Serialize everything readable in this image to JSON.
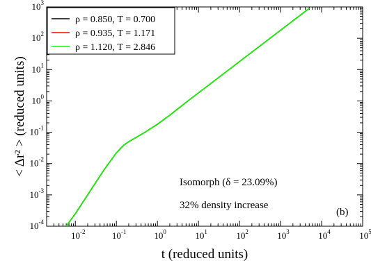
{
  "chart_data": {
    "type": "line",
    "xlabel": "t (reduced units)",
    "ylabel": "< Δr² > (reduced units)",
    "x_scale": "log",
    "y_scale": "log",
    "xlim": [
      0.002,
      100000
    ],
    "ylim": [
      0.0001,
      1000
    ],
    "x_tick_exponents": [
      -2,
      -1,
      0,
      1,
      2,
      3,
      4,
      5
    ],
    "y_tick_exponents": [
      -4,
      -3,
      -2,
      -1,
      0,
      1,
      2,
      3
    ],
    "grid": false,
    "legend_position": "top-left",
    "series": [
      {
        "name": "ρ = 0.850, T = 0.700",
        "color": "#000000",
        "x": [
          0.006,
          0.01,
          0.02,
          0.05,
          0.1,
          0.15,
          0.2,
          0.3,
          0.5,
          1,
          2,
          5,
          10,
          100,
          1000,
          5000
        ],
        "y": [
          0.0001,
          0.00025,
          0.001,
          0.0063,
          0.022,
          0.038,
          0.05,
          0.068,
          0.1,
          0.18,
          0.35,
          0.9,
          1.8,
          18,
          180,
          900
        ]
      },
      {
        "name": "ρ = 0.935, T = 1.171",
        "color": "#ff0000",
        "x": [
          0.006,
          0.01,
          0.02,
          0.05,
          0.1,
          0.15,
          0.2,
          0.3,
          0.5,
          1,
          2,
          5,
          10,
          100,
          1000,
          5000
        ],
        "y": [
          0.0001,
          0.00025,
          0.001,
          0.0063,
          0.022,
          0.038,
          0.05,
          0.068,
          0.1,
          0.18,
          0.35,
          0.9,
          1.8,
          18,
          180,
          900
        ]
      },
      {
        "name": "ρ = 1.120, T = 2.846",
        "color": "#00ff00",
        "x": [
          0.006,
          0.01,
          0.02,
          0.05,
          0.1,
          0.15,
          0.2,
          0.3,
          0.5,
          1,
          2,
          5,
          10,
          100,
          1000,
          5000
        ],
        "y": [
          0.0001,
          0.00025,
          0.001,
          0.0063,
          0.022,
          0.038,
          0.05,
          0.068,
          0.1,
          0.18,
          0.35,
          0.9,
          1.8,
          18,
          180,
          900
        ]
      }
    ],
    "annotations": {
      "isomorph": "Isomorph (δ = 23.09%)",
      "density": "32% density increase",
      "panel": "(b)"
    }
  }
}
